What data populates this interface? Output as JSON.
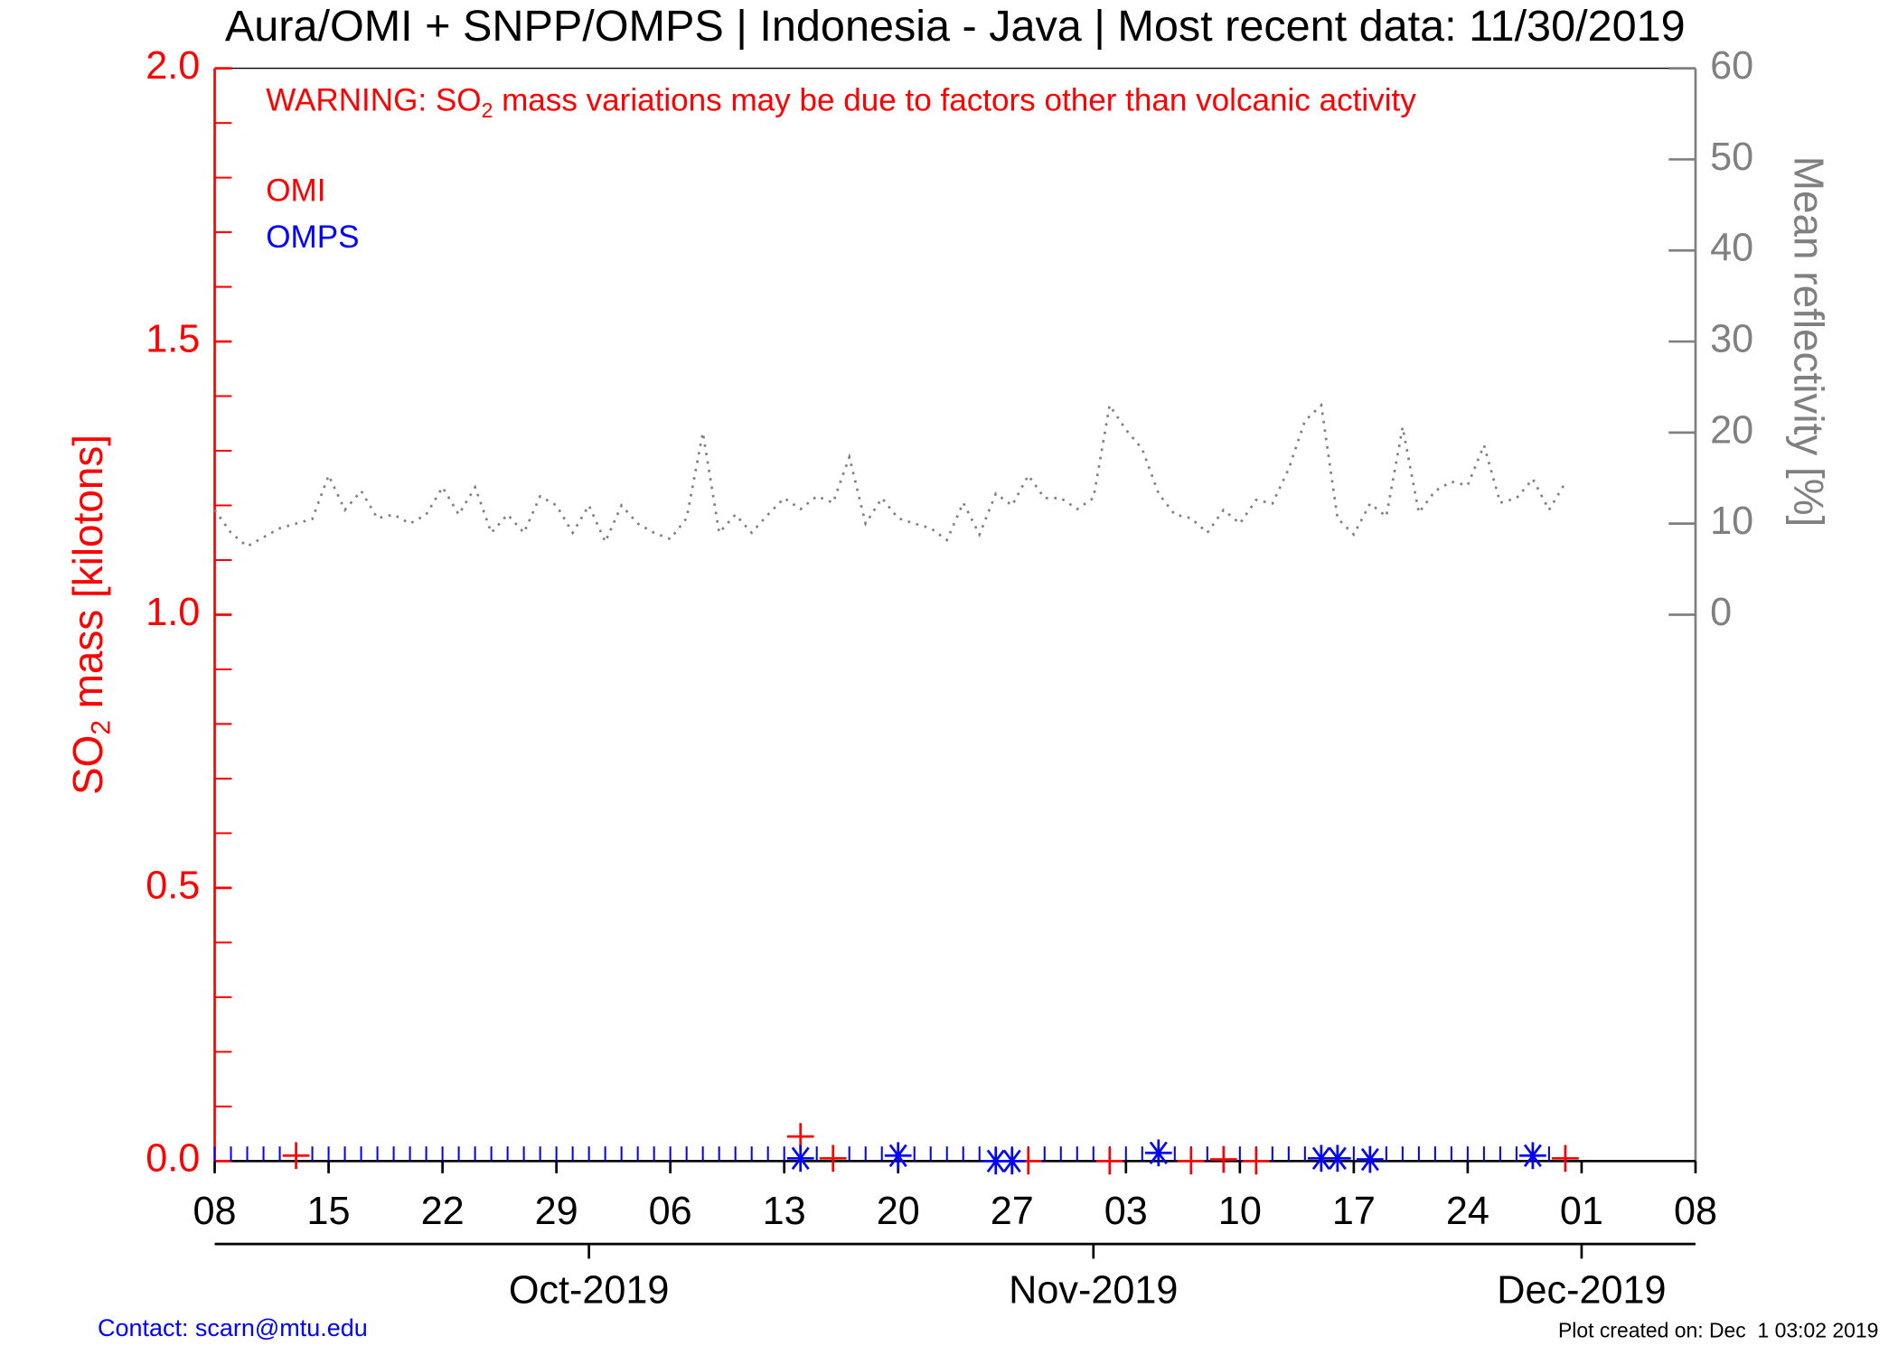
{
  "chart_data": {
    "type": "scatter",
    "title": "Aura/OMI + SNPP/OMPS | Indonesia - Java | Most recent data: 11/30/2019",
    "warning_parts": [
      "WARNING: SO",
      "2",
      " mass variations may be due to factors other than volcanic activity"
    ],
    "ylabel_parts": [
      "SO",
      "2",
      " mass [kilotons]"
    ],
    "y2label": "Mean reflectivity [%]",
    "contact": "Contact: scarn@mtu.edu",
    "created": "Plot created on: Dec  1 03:02 2019",
    "xlim": [
      "2019-09-08",
      "2019-12-08"
    ],
    "xticks": [
      {
        "value": "2019-09-08",
        "label": "08"
      },
      {
        "value": "2019-09-15",
        "label": "15"
      },
      {
        "value": "2019-09-22",
        "label": "22"
      },
      {
        "value": "2019-09-29",
        "label": "29"
      },
      {
        "value": "2019-10-06",
        "label": "06"
      },
      {
        "value": "2019-10-13",
        "label": "13"
      },
      {
        "value": "2019-10-20",
        "label": "20"
      },
      {
        "value": "2019-10-27",
        "label": "27"
      },
      {
        "value": "2019-11-03",
        "label": "03"
      },
      {
        "value": "2019-11-10",
        "label": "10"
      },
      {
        "value": "2019-11-17",
        "label": "17"
      },
      {
        "value": "2019-11-24",
        "label": "24"
      },
      {
        "value": "2019-12-01",
        "label": "01"
      },
      {
        "value": "2019-12-08",
        "label": "08"
      }
    ],
    "month_ticks": [
      {
        "value": "2019-10-01",
        "label": "Oct-2019"
      },
      {
        "value": "2019-11-01",
        "label": "Nov-2019"
      },
      {
        "value": "2019-12-01",
        "label": "Dec-2019"
      }
    ],
    "ylim": [
      0,
      2.0
    ],
    "yticks": [
      {
        "value": 0,
        "label": "0.0"
      },
      0.5,
      {
        "value": 1,
        "label": "1.0"
      },
      1.5,
      {
        "value": 2,
        "label": "2.0"
      }
    ],
    "y2lim": [
      -60,
      60
    ],
    "y2ticks": [
      0,
      10,
      20,
      30,
      40,
      50,
      60
    ],
    "y_color": "#ff0000",
    "y2_color": "#808080",
    "series": [
      {
        "name": "OMI",
        "color": "#ff0000",
        "marker": "+",
        "x": [
          "2019-09-13",
          "2019-10-14",
          "2019-10-16",
          "2019-10-28",
          "2019-11-02",
          "2019-11-07",
          "2019-11-09",
          "2019-11-11",
          "2019-11-30"
        ],
        "values": [
          0.01,
          0.045,
          0.005,
          0.0,
          0.0,
          0.0,
          0.003,
          0.0,
          0.005
        ]
      },
      {
        "name": "OMPS",
        "color": "#0000ff",
        "marker": "*",
        "x": [
          "2019-10-14",
          "2019-10-20",
          "2019-10-26",
          "2019-10-27",
          "2019-11-05",
          "2019-11-15",
          "2019-11-16",
          "2019-11-18",
          "2019-11-28"
        ],
        "values": [
          0.005,
          0.01,
          0.0,
          0.0,
          0.015,
          0.005,
          0.005,
          0.003,
          0.01
        ]
      }
    ],
    "reflectivity": {
      "axis": "y2",
      "color": "#808080",
      "x": [
        "2019-09-08",
        "2019-09-09",
        "2019-09-10",
        "2019-09-11",
        "2019-09-12",
        "2019-09-13",
        "2019-09-14",
        "2019-09-15",
        "2019-09-16",
        "2019-09-17",
        "2019-09-18",
        "2019-09-19",
        "2019-09-20",
        "2019-09-21",
        "2019-09-22",
        "2019-09-23",
        "2019-09-24",
        "2019-09-25",
        "2019-09-26",
        "2019-09-27",
        "2019-09-28",
        "2019-09-29",
        "2019-09-30",
        "2019-10-01",
        "2019-10-02",
        "2019-10-03",
        "2019-10-04",
        "2019-10-05",
        "2019-10-06",
        "2019-10-07",
        "2019-10-08",
        "2019-10-09",
        "2019-10-10",
        "2019-10-11",
        "2019-10-12",
        "2019-10-13",
        "2019-10-14",
        "2019-10-15",
        "2019-10-16",
        "2019-10-17",
        "2019-10-18",
        "2019-10-19",
        "2019-10-20",
        "2019-10-21",
        "2019-10-22",
        "2019-10-23",
        "2019-10-24",
        "2019-10-25",
        "2019-10-26",
        "2019-10-27",
        "2019-10-28",
        "2019-10-29",
        "2019-10-30",
        "2019-10-31",
        "2019-11-01",
        "2019-11-02",
        "2019-11-03",
        "2019-11-04",
        "2019-11-05",
        "2019-11-06",
        "2019-11-07",
        "2019-11-08",
        "2019-11-09",
        "2019-11-10",
        "2019-11-11",
        "2019-11-12",
        "2019-11-13",
        "2019-11-14",
        "2019-11-15",
        "2019-11-16",
        "2019-11-17",
        "2019-11-18",
        "2019-11-19",
        "2019-11-20",
        "2019-11-21",
        "2019-11-22",
        "2019-11-23",
        "2019-11-24",
        "2019-11-25",
        "2019-11-26",
        "2019-11-27",
        "2019-11-28",
        "2019-11-29",
        "2019-11-30"
      ],
      "values": [
        11.5,
        9,
        7.5,
        8.5,
        9.5,
        10,
        10.5,
        15.3,
        11.5,
        13.6,
        10.6,
        11,
        10,
        11,
        14,
        11,
        14,
        9,
        11,
        9,
        13,
        12,
        9,
        12,
        8,
        12,
        10,
        9,
        8.3,
        10.6,
        20,
        9,
        11,
        9,
        11,
        12.8,
        11.6,
        13,
        12.3,
        17.3,
        10,
        12.8,
        10.6,
        10,
        9.5,
        8.2,
        12.3,
        8.8,
        13.3,
        12,
        15.3,
        12.8,
        12.8,
        11.6,
        12.8,
        23,
        20.3,
        18.2,
        13.3,
        11,
        10.6,
        9,
        11.5,
        10,
        12.6,
        12.2,
        16,
        21.3,
        23,
        10.6,
        8.8,
        12.2,
        10.8,
        20.6,
        11.2,
        13.6,
        14.6,
        14.2,
        18.6,
        12.3,
        12.8,
        14.9,
        11.5,
        14.5
      ]
    }
  }
}
